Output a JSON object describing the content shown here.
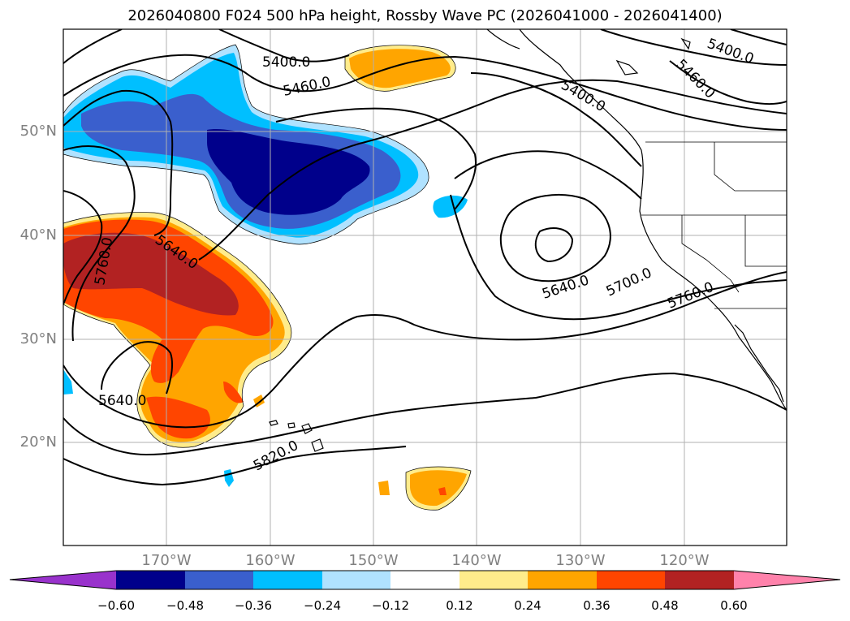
{
  "title": "2026040800 F024 500 hPa height, Rossby Wave PC (2026041000 - 2026041400)",
  "lat_labels": [
    "50°N",
    "40°N",
    "30°N",
    "20°N"
  ],
  "lon_labels": [
    "170°W",
    "160°W",
    "150°W",
    "140°W",
    "130°W",
    "120°W"
  ],
  "contour_labels": [
    "5400.0",
    "5460.0",
    "5400.0",
    "5460.0",
    "5760.0",
    "5640.0",
    "5640.0",
    "5700.0",
    "5760.0",
    "5640.0",
    "5820.0",
    "5400.0"
  ],
  "colorbar": {
    "ticks": [
      "−0.60",
      "−0.48",
      "−0.36",
      "−0.24",
      "−0.12",
      "0.12",
      "0.24",
      "0.36",
      "0.48",
      "0.60"
    ],
    "colors": [
      "#9932cc",
      "#00008b",
      "#3a5fcd",
      "#00bfff",
      "#b0e2ff",
      "#ffffff",
      "#ffec8b",
      "#ffa500",
      "#ff4500",
      "#b22222",
      "#ff82ab"
    ]
  },
  "shading_colors": {
    "strong_neg": "#00008b",
    "mid_neg": "#3a5fcd",
    "weak_neg": "#00bfff",
    "light_neg": "#b0e2ff",
    "light_pos": "#ffec8b",
    "weak_pos": "#ffa500",
    "mid_pos": "#ff4500",
    "strong_pos": "#b22222"
  }
}
